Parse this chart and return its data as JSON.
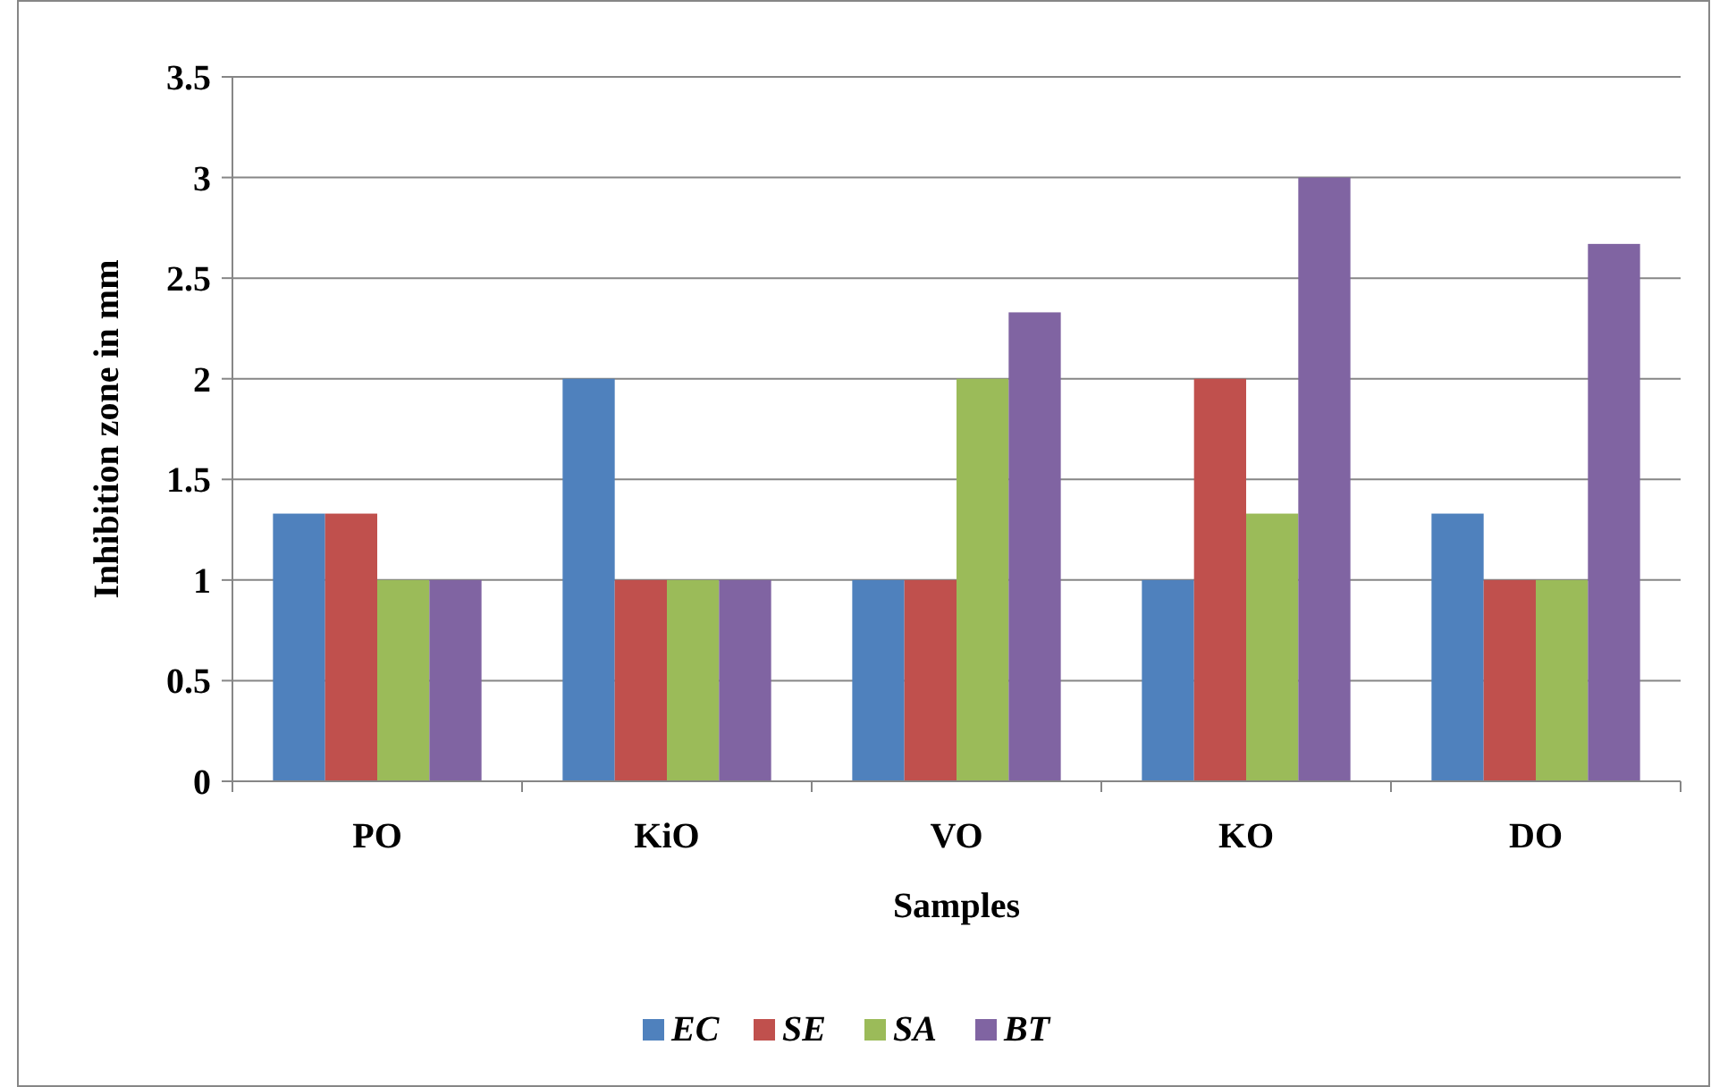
{
  "chart_data": {
    "type": "bar",
    "xlabel": "Samples",
    "ylabel": "Inhibition zone in mm",
    "categories": [
      "PO",
      "KiO",
      "VO",
      "KO",
      "DO"
    ],
    "series": [
      {
        "name": "EC",
        "color": "#4f81bd",
        "values": [
          1.33,
          2,
          1,
          1,
          1.33
        ]
      },
      {
        "name": "SE",
        "color": "#c0504d",
        "values": [
          1.33,
          1,
          1,
          2,
          1
        ]
      },
      {
        "name": "SA",
        "color": "#9bbb59",
        "values": [
          1,
          1,
          2,
          1.33,
          1
        ]
      },
      {
        "name": "BT",
        "color": "#8064a2",
        "values": [
          1,
          1,
          2.33,
          3,
          2.67
        ]
      }
    ],
    "ylim": [
      0,
      3.5
    ],
    "yticks": [
      0,
      {
        "value": 0.5,
        "label": "0.5"
      },
      1,
      {
        "value": 1.5,
        "label": "1.5"
      },
      2,
      {
        "value": 2.5,
        "label": "2.5"
      },
      3,
      {
        "value": 3.5,
        "label": "3.5"
      }
    ],
    "grid": "y",
    "legend": "bottom"
  }
}
